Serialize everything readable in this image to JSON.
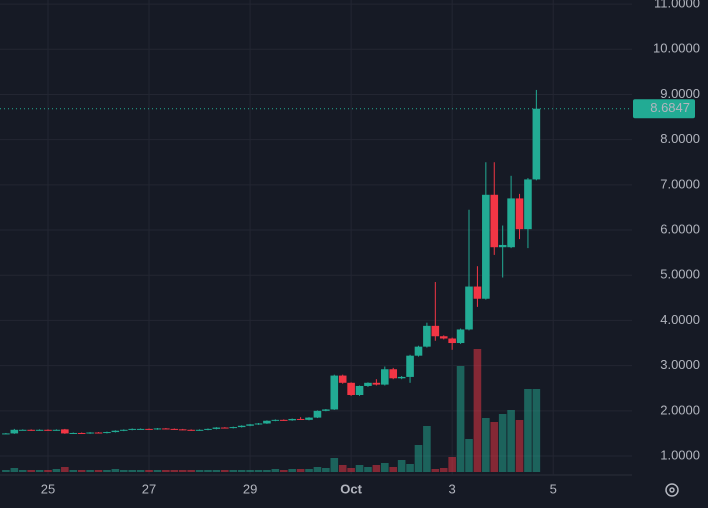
{
  "chart_data": {
    "type": "candlestick",
    "categories": [
      null,
      null,
      null,
      null,
      null,
      "25",
      null,
      null,
      null,
      null,
      null,
      null,
      null,
      null,
      null,
      null,
      null,
      "27",
      null,
      null,
      null,
      null,
      null,
      null,
      null,
      null,
      null,
      null,
      null,
      "29",
      null,
      null,
      null,
      null,
      null,
      null,
      null,
      null,
      null,
      null,
      null,
      "Oct",
      null,
      null,
      null,
      null,
      null,
      null,
      null,
      null,
      null,
      null,
      null,
      "3",
      null,
      null,
      null,
      null,
      null,
      null,
      null,
      null,
      null,
      null,
      null,
      "5"
    ],
    "open": [
      1.5,
      1.5,
      1.58,
      1.58,
      1.57,
      1.58,
      1.57,
      1.59,
      1.5,
      1.51,
      1.5,
      1.52,
      1.51,
      1.53,
      1.56,
      1.58,
      1.6,
      1.6,
      1.59,
      1.61,
      1.6,
      1.59,
      1.58,
      1.57,
      1.58,
      1.6,
      1.63,
      1.62,
      1.64,
      1.67,
      1.7,
      1.72,
      1.78,
      1.8,
      1.79,
      1.82,
      1.8,
      1.85,
      2.0,
      2.03,
      2.78,
      2.62,
      2.35,
      2.55,
      2.62,
      2.58,
      2.92,
      2.72,
      2.75,
      3.22,
      3.42,
      3.88,
      3.65,
      3.6,
      3.5,
      3.8,
      4.75,
      4.48,
      6.78,
      5.62,
      5.62,
      6.7,
      6.02,
      7.12,
      null,
      null
    ],
    "high": [
      1.51,
      1.6,
      1.59,
      1.59,
      1.59,
      1.59,
      1.59,
      1.6,
      1.52,
      1.52,
      1.53,
      1.53,
      1.54,
      1.57,
      1.59,
      1.61,
      1.61,
      1.61,
      1.62,
      1.62,
      1.61,
      1.6,
      1.59,
      1.59,
      1.61,
      1.64,
      1.64,
      1.65,
      1.68,
      1.71,
      1.73,
      1.79,
      1.81,
      1.81,
      1.83,
      1.86,
      1.86,
      2.01,
      2.04,
      2.8,
      2.8,
      2.63,
      2.56,
      2.63,
      2.7,
      2.98,
      2.95,
      2.77,
      3.24,
      3.44,
      3.95,
      4.85,
      3.67,
      3.62,
      3.82,
      6.45,
      5.2,
      7.5,
      7.5,
      6.1,
      7.2,
      6.8,
      7.15,
      9.1,
      null,
      null
    ],
    "low": [
      1.49,
      1.49,
      1.57,
      1.56,
      1.56,
      1.56,
      1.56,
      1.49,
      1.49,
      1.49,
      1.49,
      1.5,
      1.5,
      1.52,
      1.55,
      1.57,
      1.59,
      1.58,
      1.58,
      1.59,
      1.58,
      1.57,
      1.56,
      1.56,
      1.57,
      1.59,
      1.61,
      1.61,
      1.63,
      1.66,
      1.69,
      1.71,
      1.77,
      1.78,
      1.78,
      1.81,
      1.79,
      1.84,
      1.99,
      2.02,
      2.6,
      2.33,
      2.33,
      2.53,
      2.56,
      2.56,
      2.7,
      2.7,
      2.62,
      3.2,
      3.4,
      3.55,
      3.58,
      3.35,
      3.48,
      3.78,
      4.3,
      4.46,
      5.45,
      4.95,
      5.6,
      5.8,
      5.6,
      7.1,
      null,
      null
    ],
    "close": [
      1.5,
      1.58,
      1.58,
      1.57,
      1.58,
      1.57,
      1.58,
      1.5,
      1.51,
      1.5,
      1.52,
      1.51,
      1.53,
      1.56,
      1.58,
      1.6,
      1.6,
      1.59,
      1.61,
      1.6,
      1.59,
      1.58,
      1.57,
      1.58,
      1.6,
      1.63,
      1.62,
      1.64,
      1.67,
      1.7,
      1.72,
      1.78,
      1.8,
      1.79,
      1.82,
      1.8,
      1.85,
      2.0,
      2.03,
      2.78,
      2.62,
      2.35,
      2.55,
      2.62,
      2.58,
      2.92,
      2.72,
      2.75,
      3.22,
      3.42,
      3.88,
      3.65,
      3.6,
      3.5,
      3.8,
      4.75,
      4.48,
      6.78,
      5.62,
      5.67,
      6.7,
      6.02,
      7.12,
      8.6847,
      null,
      null
    ],
    "volume": [
      2,
      4,
      2,
      2,
      2,
      2,
      3,
      5,
      2,
      2,
      2,
      2,
      2,
      3,
      2,
      2,
      2,
      2,
      2,
      2,
      2,
      2,
      2,
      2,
      2,
      2,
      2,
      2,
      2,
      2,
      2,
      2,
      3,
      2,
      3,
      3,
      3,
      5,
      4,
      14,
      7,
      4,
      7,
      5,
      7,
      9,
      5,
      12,
      8,
      27,
      46,
      3,
      4,
      15,
      106,
      33,
      123,
      54,
      50,
      58,
      62,
      52,
      83,
      83,
      null,
      null
    ],
    "up_color": "#22ab94",
    "down_color": "#f23645",
    "ylim": [
      0.58,
      11.09
    ],
    "yticks": [
      {
        "value": 1,
        "label": "1.0000"
      },
      {
        "value": 2,
        "label": "2.0000"
      },
      {
        "value": 3,
        "label": "3.0000"
      },
      {
        "value": 4,
        "label": "4.0000"
      },
      {
        "value": 5,
        "label": "5.0000"
      },
      {
        "value": 6,
        "label": "6.0000"
      },
      {
        "value": 7,
        "label": "7.0000"
      },
      {
        "value": 8,
        "label": "8.0000"
      },
      {
        "value": 9,
        "label": "9.0000"
      },
      {
        "value": 10,
        "label": "10.0000"
      },
      {
        "value": 11,
        "label": "11.0000"
      }
    ],
    "grid": true,
    "last_price": 8.6847
  }
}
